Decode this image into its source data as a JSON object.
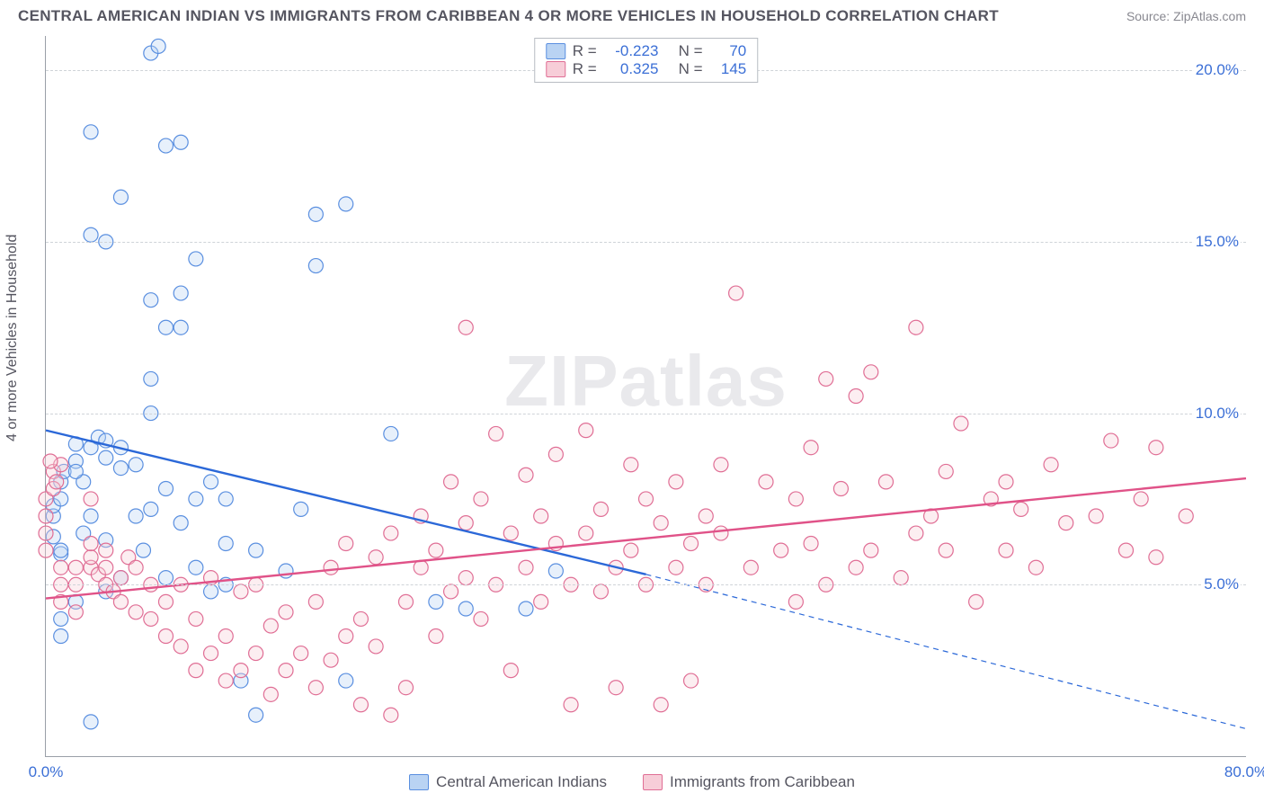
{
  "title": "CENTRAL AMERICAN INDIAN VS IMMIGRANTS FROM CARIBBEAN 4 OR MORE VEHICLES IN HOUSEHOLD CORRELATION CHART",
  "source": "Source: ZipAtlas.com",
  "watermark": "ZIPatlas",
  "yaxis_label": "4 or more Vehicles in Household",
  "chart": {
    "type": "scatter",
    "xlim": [
      0,
      80
    ],
    "ylim": [
      0,
      21
    ],
    "y_ticks": [
      5.0,
      10.0,
      15.0,
      20.0
    ],
    "y_tick_labels": [
      "5.0%",
      "10.0%",
      "15.0%",
      "20.0%"
    ],
    "x_ticks": [
      0,
      80
    ],
    "x_tick_labels": [
      "0.0%",
      "80.0%"
    ],
    "grid_color": "#cfd3d8",
    "axis_color": "#9aa0a8",
    "background": "#ffffff",
    "marker_radius": 8,
    "series": [
      {
        "name": "Central American Indians",
        "color_fill": "#b9d3f3",
        "color_stroke": "#5a8fe0",
        "R": "-0.223",
        "N": "70",
        "trend": {
          "solid_from": [
            0,
            9.5
          ],
          "solid_to": [
            40,
            5.3
          ],
          "dashed_to": [
            80,
            0.8
          ],
          "color": "#2b68d8",
          "width": 2.4
        },
        "points": [
          [
            3,
            1.0
          ],
          [
            14,
            1.2
          ],
          [
            20,
            2.2
          ],
          [
            26,
            4.5
          ],
          [
            28,
            4.3
          ],
          [
            32,
            4.3
          ],
          [
            34,
            5.4
          ],
          [
            1,
            5.9
          ],
          [
            1,
            6.0
          ],
          [
            0.5,
            6.4
          ],
          [
            0.5,
            7.0
          ],
          [
            0.5,
            7.3
          ],
          [
            1,
            7.5
          ],
          [
            1,
            8.0
          ],
          [
            1.2,
            8.3
          ],
          [
            2,
            8.6
          ],
          [
            2.5,
            8.0
          ],
          [
            2,
            9.1
          ],
          [
            3,
            9.0
          ],
          [
            3.5,
            9.3
          ],
          [
            4,
            8.7
          ],
          [
            4,
            9.2
          ],
          [
            5,
            8.4
          ],
          [
            5,
            9.0
          ],
          [
            6,
            8.5
          ],
          [
            6,
            7.0
          ],
          [
            6.5,
            6.0
          ],
          [
            7,
            7.2
          ],
          [
            8,
            7.8
          ],
          [
            8,
            5.2
          ],
          [
            9,
            6.8
          ],
          [
            10,
            5.5
          ],
          [
            10,
            7.5
          ],
          [
            11,
            8.0
          ],
          [
            12,
            6.2
          ],
          [
            12,
            7.5
          ],
          [
            13,
            2.2
          ],
          [
            4,
            6.3
          ],
          [
            4,
            4.8
          ],
          [
            5,
            5.2
          ],
          [
            2,
            4.5
          ],
          [
            1,
            4.0
          ],
          [
            1,
            3.5
          ],
          [
            7,
            10.0
          ],
          [
            7,
            11.0
          ],
          [
            8,
            12.5
          ],
          [
            9,
            12.5
          ],
          [
            9,
            13.5
          ],
          [
            7,
            13.3
          ],
          [
            10,
            14.5
          ],
          [
            4,
            15.0
          ],
          [
            3,
            15.2
          ],
          [
            5,
            16.3
          ],
          [
            18,
            14.3
          ],
          [
            18,
            15.8
          ],
          [
            20,
            16.1
          ],
          [
            8,
            17.8
          ],
          [
            9,
            17.9
          ],
          [
            3,
            18.2
          ],
          [
            7,
            20.5
          ],
          [
            7.5,
            20.7
          ],
          [
            23,
            9.4
          ],
          [
            14,
            6.0
          ],
          [
            16,
            5.4
          ],
          [
            12,
            5.0
          ],
          [
            11,
            4.8
          ],
          [
            2.5,
            6.5
          ],
          [
            3,
            7.0
          ],
          [
            2,
            8.3
          ],
          [
            17,
            7.2
          ]
        ]
      },
      {
        "name": "Immigrants from Caribbean",
        "color_fill": "#f7cdd8",
        "color_stroke": "#e06e95",
        "R": "0.325",
        "N": "145",
        "trend": {
          "solid_from": [
            0,
            4.6
          ],
          "solid_to": [
            80,
            8.1
          ],
          "color": "#e05288",
          "width": 2.4
        },
        "points": [
          [
            0,
            6.0
          ],
          [
            0,
            6.5
          ],
          [
            0,
            7.0
          ],
          [
            0,
            7.5
          ],
          [
            0.5,
            7.8
          ],
          [
            0.5,
            8.3
          ],
          [
            1,
            8.5
          ],
          [
            1,
            5.5
          ],
          [
            1,
            5.0
          ],
          [
            1,
            4.5
          ],
          [
            2,
            5.0
          ],
          [
            2,
            5.5
          ],
          [
            2,
            4.2
          ],
          [
            3,
            5.5
          ],
          [
            3,
            5.8
          ],
          [
            3,
            6.2
          ],
          [
            3.5,
            5.3
          ],
          [
            4,
            5.0
          ],
          [
            4,
            5.5
          ],
          [
            4,
            6.0
          ],
          [
            4.5,
            4.8
          ],
          [
            5,
            4.5
          ],
          [
            5,
            5.2
          ],
          [
            5.5,
            5.8
          ],
          [
            6,
            5.5
          ],
          [
            6,
            4.2
          ],
          [
            7,
            4.0
          ],
          [
            7,
            5.0
          ],
          [
            8,
            4.5
          ],
          [
            8,
            3.5
          ],
          [
            9,
            5.0
          ],
          [
            9,
            3.2
          ],
          [
            10,
            4.0
          ],
          [
            10,
            2.5
          ],
          [
            11,
            3.0
          ],
          [
            11,
            5.2
          ],
          [
            12,
            3.5
          ],
          [
            12,
            2.2
          ],
          [
            13,
            4.8
          ],
          [
            13,
            2.5
          ],
          [
            14,
            3.0
          ],
          [
            14,
            5.0
          ],
          [
            15,
            3.8
          ],
          [
            15,
            1.8
          ],
          [
            16,
            4.2
          ],
          [
            16,
            2.5
          ],
          [
            17,
            3.0
          ],
          [
            18,
            4.5
          ],
          [
            18,
            2.0
          ],
          [
            19,
            2.8
          ],
          [
            19,
            5.5
          ],
          [
            20,
            3.5
          ],
          [
            20,
            6.2
          ],
          [
            21,
            1.5
          ],
          [
            21,
            4.0
          ],
          [
            22,
            3.2
          ],
          [
            22,
            5.8
          ],
          [
            23,
            1.2
          ],
          [
            23,
            6.5
          ],
          [
            24,
            2.0
          ],
          [
            24,
            4.5
          ],
          [
            25,
            5.5
          ],
          [
            25,
            7.0
          ],
          [
            26,
            3.5
          ],
          [
            26,
            6.0
          ],
          [
            27,
            4.8
          ],
          [
            27,
            8.0
          ],
          [
            28,
            5.2
          ],
          [
            28,
            6.8
          ],
          [
            29,
            7.5
          ],
          [
            29,
            4.0
          ],
          [
            30,
            5.0
          ],
          [
            30,
            9.4
          ],
          [
            31,
            2.5
          ],
          [
            31,
            6.5
          ],
          [
            32,
            5.5
          ],
          [
            32,
            8.2
          ],
          [
            33,
            7.0
          ],
          [
            33,
            4.5
          ],
          [
            34,
            6.2
          ],
          [
            34,
            8.8
          ],
          [
            35,
            1.5
          ],
          [
            35,
            5.0
          ],
          [
            36,
            6.5
          ],
          [
            36,
            9.5
          ],
          [
            37,
            4.8
          ],
          [
            37,
            7.2
          ],
          [
            38,
            5.5
          ],
          [
            38,
            2.0
          ],
          [
            39,
            6.0
          ],
          [
            39,
            8.5
          ],
          [
            40,
            5.0
          ],
          [
            40,
            7.5
          ],
          [
            41,
            6.8
          ],
          [
            41,
            1.5
          ],
          [
            42,
            5.5
          ],
          [
            42,
            8.0
          ],
          [
            43,
            6.2
          ],
          [
            43,
            2.2
          ],
          [
            44,
            7.0
          ],
          [
            44,
            5.0
          ],
          [
            45,
            6.5
          ],
          [
            45,
            8.5
          ],
          [
            46,
            13.5
          ],
          [
            47,
            5.5
          ],
          [
            48,
            8.0
          ],
          [
            49,
            6.0
          ],
          [
            50,
            7.5
          ],
          [
            50,
            4.5
          ],
          [
            51,
            9.0
          ],
          [
            51,
            6.2
          ],
          [
            52,
            5.0
          ],
          [
            52,
            11.0
          ],
          [
            53,
            7.8
          ],
          [
            54,
            5.5
          ],
          [
            54,
            10.5
          ],
          [
            55,
            6.0
          ],
          [
            55,
            11.2
          ],
          [
            56,
            8.0
          ],
          [
            57,
            5.2
          ],
          [
            58,
            6.5
          ],
          [
            58,
            12.5
          ],
          [
            59,
            7.0
          ],
          [
            60,
            8.3
          ],
          [
            60,
            6.0
          ],
          [
            61,
            9.7
          ],
          [
            62,
            4.5
          ],
          [
            63,
            7.5
          ],
          [
            64,
            6.0
          ],
          [
            64,
            8.0
          ],
          [
            65,
            7.2
          ],
          [
            66,
            5.5
          ],
          [
            67,
            8.5
          ],
          [
            68,
            6.8
          ],
          [
            70,
            7.0
          ],
          [
            71,
            9.2
          ],
          [
            72,
            6.0
          ],
          [
            73,
            7.5
          ],
          [
            74,
            5.8
          ],
          [
            74,
            9.0
          ],
          [
            76,
            7.0
          ],
          [
            0.3,
            8.6
          ],
          [
            0.7,
            8.0
          ],
          [
            3,
            7.5
          ],
          [
            28,
            12.5
          ]
        ]
      }
    ]
  },
  "legend_bottom": [
    {
      "label": "Central American Indians",
      "fill": "#b9d3f3",
      "stroke": "#5a8fe0"
    },
    {
      "label": "Immigrants from Caribbean",
      "fill": "#f7cdd8",
      "stroke": "#e06e95"
    }
  ]
}
